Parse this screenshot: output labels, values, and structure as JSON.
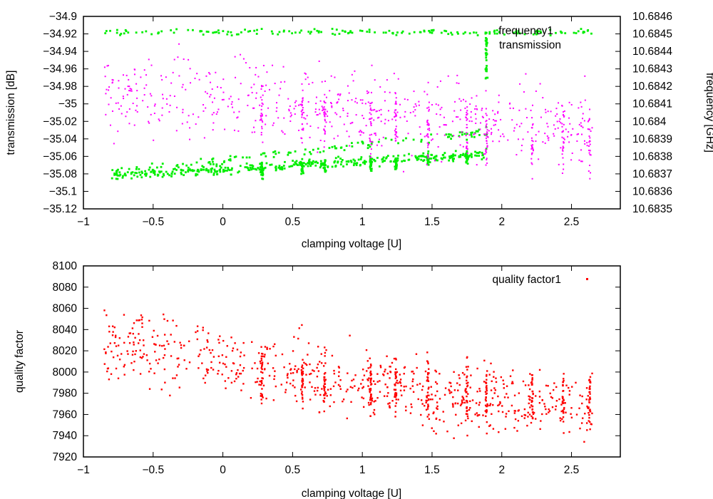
{
  "chart_data": [
    {
      "type": "scatter",
      "xlabel": "clamping voltage [U]",
      "ylabel": "transmission [dB]",
      "y2label": "frequency [GHz]",
      "xlim": [
        -1,
        2.85
      ],
      "ylim": [
        -35.12,
        -34.9
      ],
      "y2lim": [
        10.6835,
        10.6846
      ],
      "xticks": [
        "−1",
        "−0.5",
        "0",
        "0.5",
        "1",
        "1.5",
        "2",
        "2.5"
      ],
      "yticks": [
        "−34.9",
        "−34.92",
        "−34.94",
        "−34.96",
        "−34.98",
        "−35",
        "−35.02",
        "−35.04",
        "−35.06",
        "−35.08",
        "−35.1",
        "−35.12"
      ],
      "y2ticks": [
        "10.6846",
        "10.6845",
        "10.6844",
        "10.6843",
        "10.6842",
        "10.6841",
        "10.684",
        "10.6839",
        "10.6838",
        "10.6837",
        "10.6836",
        "10.6835"
      ],
      "series": [
        {
          "name": "frequency1",
          "color": "#00ee00",
          "axis": "right",
          "note": "upper branch ~10.68451 GHz; lower band 10.68365-10.6839 GHz rising toward 10.6842 near 1.9 U"
        },
        {
          "name": "transmission",
          "color": "#ff00ff",
          "axis": "left",
          "note": "dense spread from -34.96 to -35.06 dB, drifting downward with voltage"
        }
      ],
      "legend": "top-right"
    },
    {
      "type": "scatter",
      "xlabel": "clamping voltage [U]",
      "ylabel": "quality factor",
      "xlim": [
        -1,
        2.85
      ],
      "ylim": [
        7920,
        8100
      ],
      "xticks": [
        "−1",
        "−0.5",
        "0",
        "0.5",
        "1",
        "1.5",
        "2",
        "2.5"
      ],
      "yticks": [
        "8100",
        "8080",
        "8060",
        "8040",
        "8020",
        "8000",
        "7980",
        "7960",
        "7940",
        "7920"
      ],
      "series": [
        {
          "name": "quality factor1",
          "color": "#ff0000",
          "axis": "left",
          "note": "decreasing trend from ~8030 at -0.8 U to ~7975 at 2.6 U"
        }
      ],
      "legend": "top-right"
    }
  ]
}
